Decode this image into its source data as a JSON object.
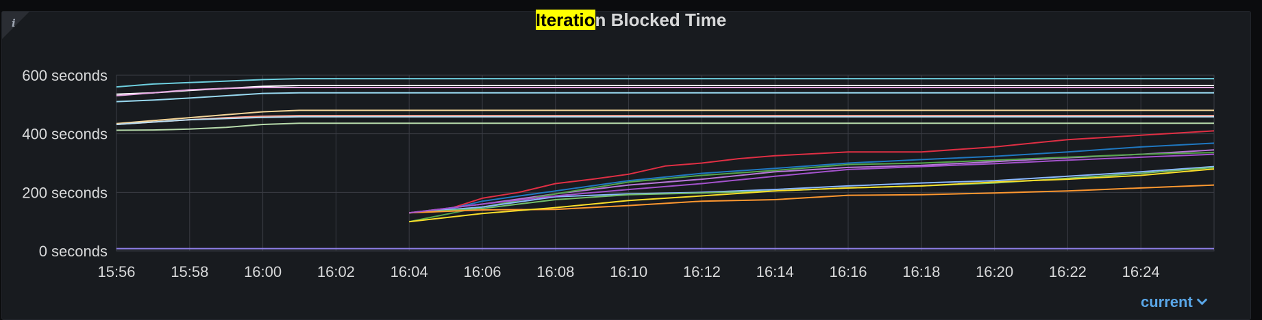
{
  "panel": {
    "title_highlight": "Iteratio",
    "title_rest": "n Blocked Time",
    "info_icon": "i",
    "legend_toggle": "current"
  },
  "chart_data": {
    "type": "line",
    "title": "Iteration Blocked Time",
    "xlabel": "",
    "ylabel": "",
    "x_range": [
      "15:56",
      "16:26"
    ],
    "ylim": [
      0,
      600
    ],
    "y_ticks": [
      {
        "v": 0,
        "label": "0 seconds"
      },
      {
        "v": 200,
        "label": "200 seconds"
      },
      {
        "v": 400,
        "label": "400 seconds"
      },
      {
        "v": 600,
        "label": "600 seconds"
      }
    ],
    "x_ticks": [
      "15:56",
      "15:58",
      "16:00",
      "16:02",
      "16:04",
      "16:06",
      "16:08",
      "16:10",
      "16:12",
      "16:14",
      "16:16",
      "16:18",
      "16:20",
      "16:22",
      "16:24"
    ],
    "grid": true,
    "series": [
      {
        "color": "#6ed0e0",
        "x": [
          "15:56",
          "15:57",
          "15:58",
          "15:59",
          "16:00",
          "16:01",
          "16:26"
        ],
        "values": [
          560,
          570,
          575,
          580,
          585,
          588,
          588
        ]
      },
      {
        "color": "#ffffff",
        "x": [
          "15:56",
          "15:57",
          "15:58",
          "15:59",
          "16:00",
          "16:01",
          "16:26"
        ],
        "values": [
          535,
          540,
          548,
          555,
          562,
          565,
          565
        ]
      },
      {
        "color": "#e5a8e2",
        "x": [
          "15:56",
          "15:57",
          "15:58",
          "15:59",
          "16:00",
          "16:01",
          "16:26"
        ],
        "values": [
          530,
          540,
          550,
          555,
          558,
          558,
          558
        ]
      },
      {
        "color": "#99d9f0",
        "x": [
          "15:56",
          "15:57",
          "15:58",
          "15:59",
          "16:00",
          "16:01",
          "16:26"
        ],
        "values": [
          510,
          515,
          522,
          530,
          538,
          540,
          540
        ]
      },
      {
        "color": "#f4d598",
        "x": [
          "15:56",
          "15:57",
          "15:58",
          "15:59",
          "16:00",
          "16:01",
          "16:26"
        ],
        "values": [
          435,
          445,
          455,
          465,
          475,
          480,
          480
        ]
      },
      {
        "color": "#ff9b8a",
        "x": [
          "15:56",
          "15:57",
          "15:58",
          "15:59",
          "16:00",
          "16:01",
          "16:26"
        ],
        "values": [
          432,
          440,
          448,
          455,
          460,
          462,
          462
        ]
      },
      {
        "color": "#badff4",
        "x": [
          "15:56",
          "15:57",
          "15:58",
          "15:59",
          "16:00",
          "16:01",
          "16:26"
        ],
        "values": [
          432,
          440,
          448,
          452,
          456,
          458,
          458
        ]
      },
      {
        "color": "#b7dbab",
        "x": [
          "15:56",
          "15:57",
          "15:58",
          "15:59",
          "16:00",
          "16:01",
          "16:26"
        ],
        "values": [
          412,
          413,
          416,
          422,
          432,
          436,
          436
        ]
      },
      {
        "color": "#e02f44",
        "x": [
          "16:04",
          "16:05",
          "16:06",
          "16:07",
          "16:08",
          "16:09",
          "16:10",
          "16:11",
          "16:12",
          "16:13",
          "16:14",
          "16:16",
          "16:18",
          "16:20",
          "16:22",
          "16:24",
          "16:26"
        ],
        "values": [
          130,
          140,
          180,
          200,
          230,
          245,
          262,
          290,
          300,
          315,
          325,
          338,
          338,
          355,
          380,
          395,
          410
        ]
      },
      {
        "color": "#1f78c1",
        "x": [
          "16:04",
          "16:05",
          "16:06",
          "16:08",
          "16:10",
          "16:12",
          "16:14",
          "16:16",
          "16:18",
          "16:20",
          "16:22",
          "16:24",
          "16:26"
        ],
        "values": [
          130,
          140,
          170,
          205,
          240,
          265,
          282,
          300,
          312,
          323,
          338,
          355,
          368
        ]
      },
      {
        "color": "#b877d9",
        "x": [
          "16:04",
          "16:06",
          "16:08",
          "16:10",
          "16:12",
          "16:14",
          "16:16",
          "16:18",
          "16:20",
          "16:22",
          "16:24",
          "16:26"
        ],
        "values": [
          130,
          160,
          195,
          225,
          245,
          270,
          285,
          292,
          305,
          318,
          330,
          345
        ]
      },
      {
        "color": "#56a64b",
        "x": [
          "16:04",
          "16:06",
          "16:08",
          "16:10",
          "16:12",
          "16:14",
          "16:16",
          "16:18",
          "16:20",
          "16:22",
          "16:24",
          "16:26"
        ],
        "values": [
          100,
          150,
          195,
          235,
          258,
          275,
          295,
          300,
          310,
          320,
          330,
          336
        ]
      },
      {
        "color": "#8ab8ff",
        "x": [
          "16:04",
          "16:06",
          "16:08",
          "16:10",
          "16:12",
          "16:14",
          "16:16",
          "16:18",
          "16:20",
          "16:22",
          "16:24",
          "16:26"
        ],
        "values": [
          130,
          150,
          185,
          195,
          200,
          210,
          222,
          232,
          240,
          255,
          270,
          288
        ]
      },
      {
        "color": "#73bf69",
        "x": [
          "16:04",
          "16:06",
          "16:08",
          "16:10",
          "16:12",
          "16:14",
          "16:16",
          "16:18",
          "16:20",
          "16:22",
          "16:24",
          "16:26"
        ],
        "values": [
          130,
          145,
          175,
          192,
          198,
          205,
          215,
          222,
          232,
          248,
          265,
          285
        ]
      },
      {
        "color": "#ff9830",
        "x": [
          "16:04",
          "16:06",
          "16:08",
          "16:10",
          "16:12",
          "16:14",
          "16:16",
          "16:18",
          "16:20",
          "16:22",
          "16:24",
          "16:26"
        ],
        "values": [
          130,
          140,
          142,
          155,
          170,
          175,
          190,
          192,
          198,
          205,
          215,
          225
        ]
      },
      {
        "color": "#fade2a",
        "x": [
          "16:04",
          "16:06",
          "16:08",
          "16:10",
          "16:12",
          "16:14",
          "16:16",
          "16:18",
          "16:20",
          "16:22",
          "16:24",
          "16:26"
        ],
        "values": [
          100,
          128,
          148,
          172,
          188,
          205,
          215,
          222,
          235,
          245,
          258,
          280
        ]
      },
      {
        "color": "#a352cc",
        "x": [
          "16:04",
          "16:06",
          "16:08",
          "16:10",
          "16:12",
          "16:14",
          "16:16",
          "16:18",
          "16:20",
          "16:22",
          "16:24",
          "16:26"
        ],
        "values": [
          130,
          160,
          188,
          210,
          230,
          255,
          278,
          288,
          298,
          310,
          320,
          330
        ]
      },
      {
        "color": "#8f7fe8",
        "x": [
          "15:56",
          "16:26"
        ],
        "values": [
          8,
          8
        ]
      }
    ]
  }
}
